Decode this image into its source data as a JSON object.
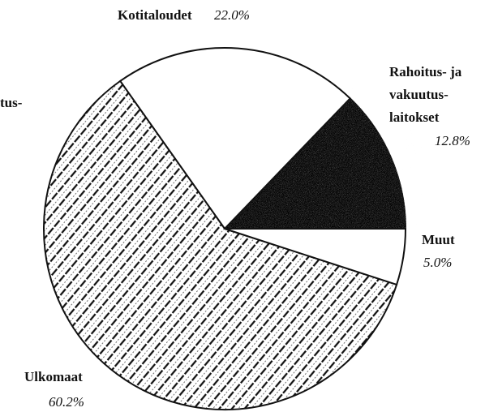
{
  "chart_data": {
    "type": "pie",
    "categories": [
      [
        "Rahoitus- ja",
        "vakuutus-",
        "laitokset"
      ],
      [
        "Kotitaloudet"
      ],
      [
        "Ulkomaat"
      ],
      [
        "Muut"
      ]
    ],
    "values": [
      12.8,
      22.0,
      60.2,
      5.0
    ],
    "value_labels": [
      "12.8%",
      "22.0%",
      "60.2%",
      "5.0%"
    ],
    "colors": [
      "#4d4d4d",
      "#ffffff",
      "#000000",
      "#ffffff"
    ],
    "annotations": [
      "tus-"
    ]
  }
}
